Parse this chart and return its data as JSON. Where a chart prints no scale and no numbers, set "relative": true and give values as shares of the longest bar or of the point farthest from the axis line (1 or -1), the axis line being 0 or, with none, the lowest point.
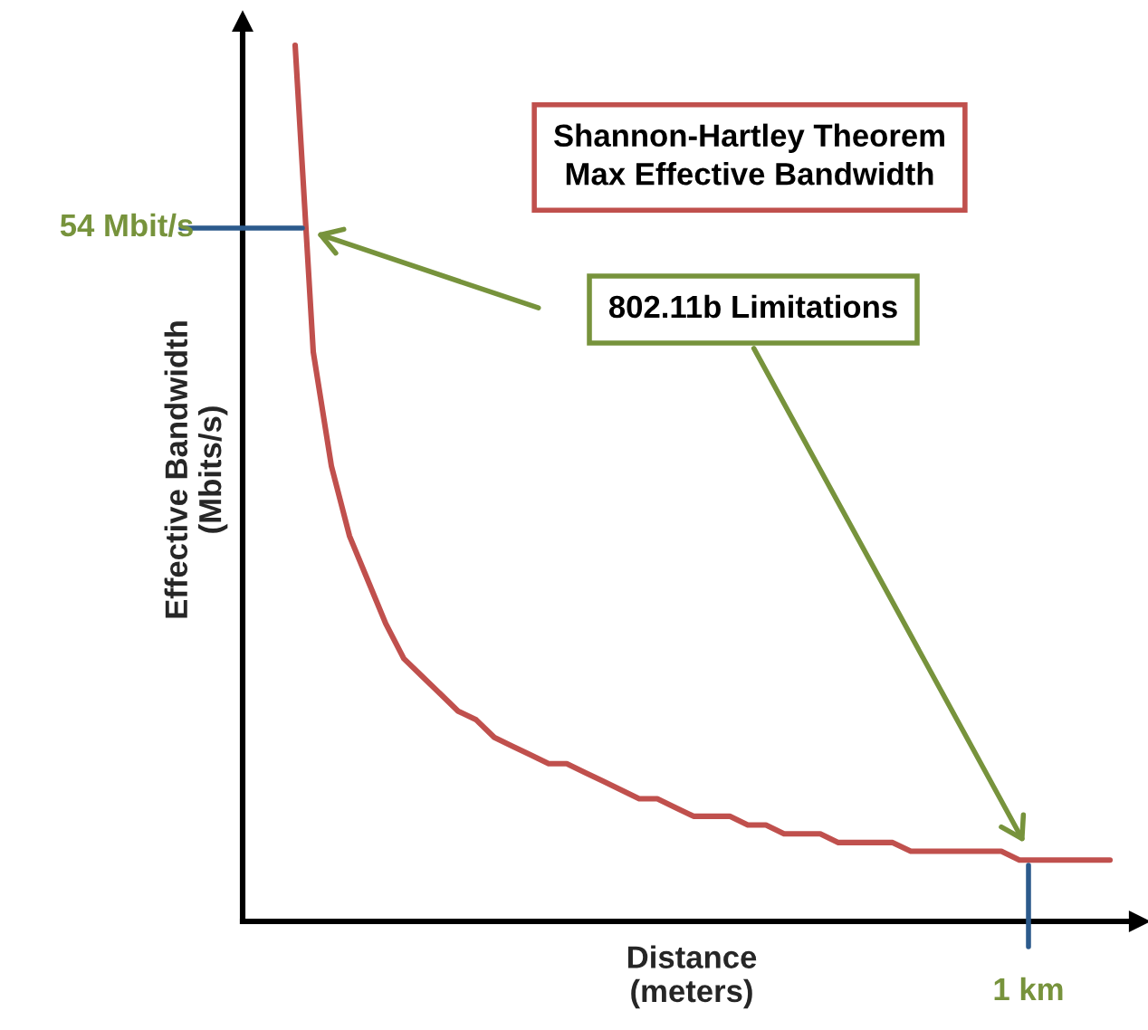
{
  "chart_data": {
    "type": "line",
    "relative": true,
    "xlabel": "Distance\n(meters)",
    "ylabel": "Effective Bandwidth\n(Mbits/s)",
    "categories": [
      null,
      null,
      null,
      null,
      null,
      null,
      null,
      null,
      null,
      null,
      null,
      null,
      null,
      null,
      null,
      null,
      null,
      null,
      null,
      null,
      null,
      null,
      null,
      null,
      null,
      null,
      null,
      null,
      null,
      null,
      null,
      null,
      null,
      null,
      null,
      null,
      null,
      null,
      null,
      null,
      null,
      null,
      null,
      null,
      null,
      null
    ],
    "series": [
      {
        "color": "#c0504d",
        "values": [
          1.0,
          0.65,
          0.52,
          0.44,
          0.39,
          0.34,
          0.3,
          0.28,
          0.26,
          0.24,
          0.23,
          0.21,
          0.2,
          0.19,
          0.18,
          0.18,
          0.17,
          0.16,
          0.15,
          0.14,
          0.14,
          0.13,
          0.12,
          0.12,
          0.12,
          0.11,
          0.11,
          0.1,
          0.1,
          0.1,
          0.09,
          0.09,
          0.09,
          0.09,
          0.08,
          0.08,
          0.08,
          0.08,
          0.08,
          0.08,
          0.07,
          0.07,
          0.07,
          0.07,
          0.07,
          0.07
        ]
      }
    ],
    "annotations": [
      "54 Mbit/s",
      "1 km",
      "Shannon-Hartley Theorem\nMax Effective Bandwidth",
      "802.11b Limitations"
    ]
  }
}
